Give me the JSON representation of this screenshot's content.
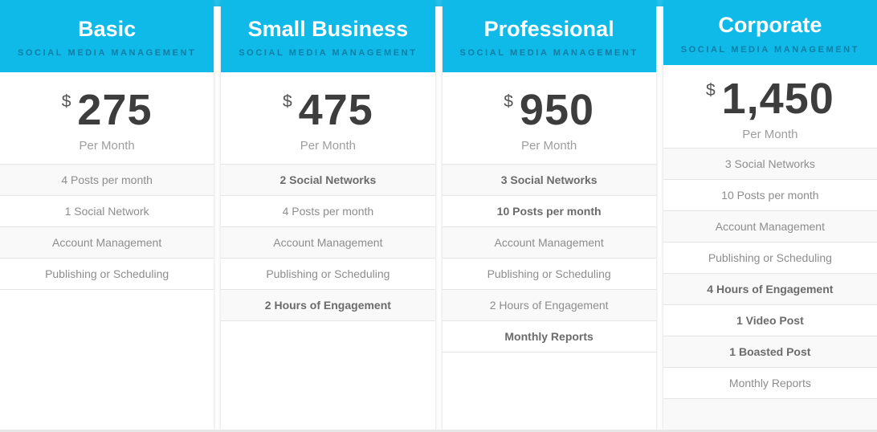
{
  "colors": {
    "header_bg": "#0fb9e8",
    "subtitle_text": "#0e7ea6",
    "price_text": "#3d3d3d",
    "feature_text": "#8d8d8d",
    "feature_bold_text": "#6b6b6b",
    "row_alt_bg": "#f9f9f9",
    "row_border": "#e4e4e4"
  },
  "plans": [
    {
      "title": "Basic",
      "subtitle": "SOCIAL MEDIA MANAGEMENT",
      "currency": "$",
      "price": "275",
      "period": "Per Month",
      "features": [
        {
          "text": "4 Posts per month",
          "bold": false
        },
        {
          "text": "1 Social Network",
          "bold": false
        },
        {
          "text": "Account Management",
          "bold": false
        },
        {
          "text": "Publishing or Scheduling",
          "bold": false
        }
      ]
    },
    {
      "title": "Small Business",
      "subtitle": "SOCIAL MEDIA MANAGEMENT",
      "currency": "$",
      "price": "475",
      "period": "Per Month",
      "features": [
        {
          "text": "2 Social Networks",
          "bold": true
        },
        {
          "text": "4 Posts per month",
          "bold": false
        },
        {
          "text": "Account Management",
          "bold": false
        },
        {
          "text": "Publishing or Scheduling",
          "bold": false
        },
        {
          "text": "2 Hours of Engagement",
          "bold": true
        }
      ]
    },
    {
      "title": "Professional",
      "subtitle": "SOCIAL MEDIA MANAGEMENT",
      "currency": "$",
      "price": "950",
      "period": "Per Month",
      "features": [
        {
          "text": "3 Social Networks",
          "bold": true
        },
        {
          "text": "10 Posts per month",
          "bold": true
        },
        {
          "text": "Account Management",
          "bold": false
        },
        {
          "text": "Publishing or Scheduling",
          "bold": false
        },
        {
          "text": "2 Hours of Engagement",
          "bold": false
        },
        {
          "text": "Monthly Reports",
          "bold": true
        }
      ]
    },
    {
      "title": "Corporate",
      "subtitle": "SOCIAL MEDIA MANAGEMENT",
      "currency": "$",
      "price": "1,450",
      "period": "Per Month",
      "features": [
        {
          "text": "3 Social Networks",
          "bold": false
        },
        {
          "text": "10 Posts per month",
          "bold": false
        },
        {
          "text": "Account Management",
          "bold": false
        },
        {
          "text": "Publishing or Scheduling",
          "bold": false
        },
        {
          "text": "4 Hours of Engagement",
          "bold": true
        },
        {
          "text": "1 Video Post",
          "bold": true
        },
        {
          "text": "1 Boasted Post",
          "bold": true
        },
        {
          "text": "Monthly Reports",
          "bold": false
        }
      ]
    }
  ]
}
